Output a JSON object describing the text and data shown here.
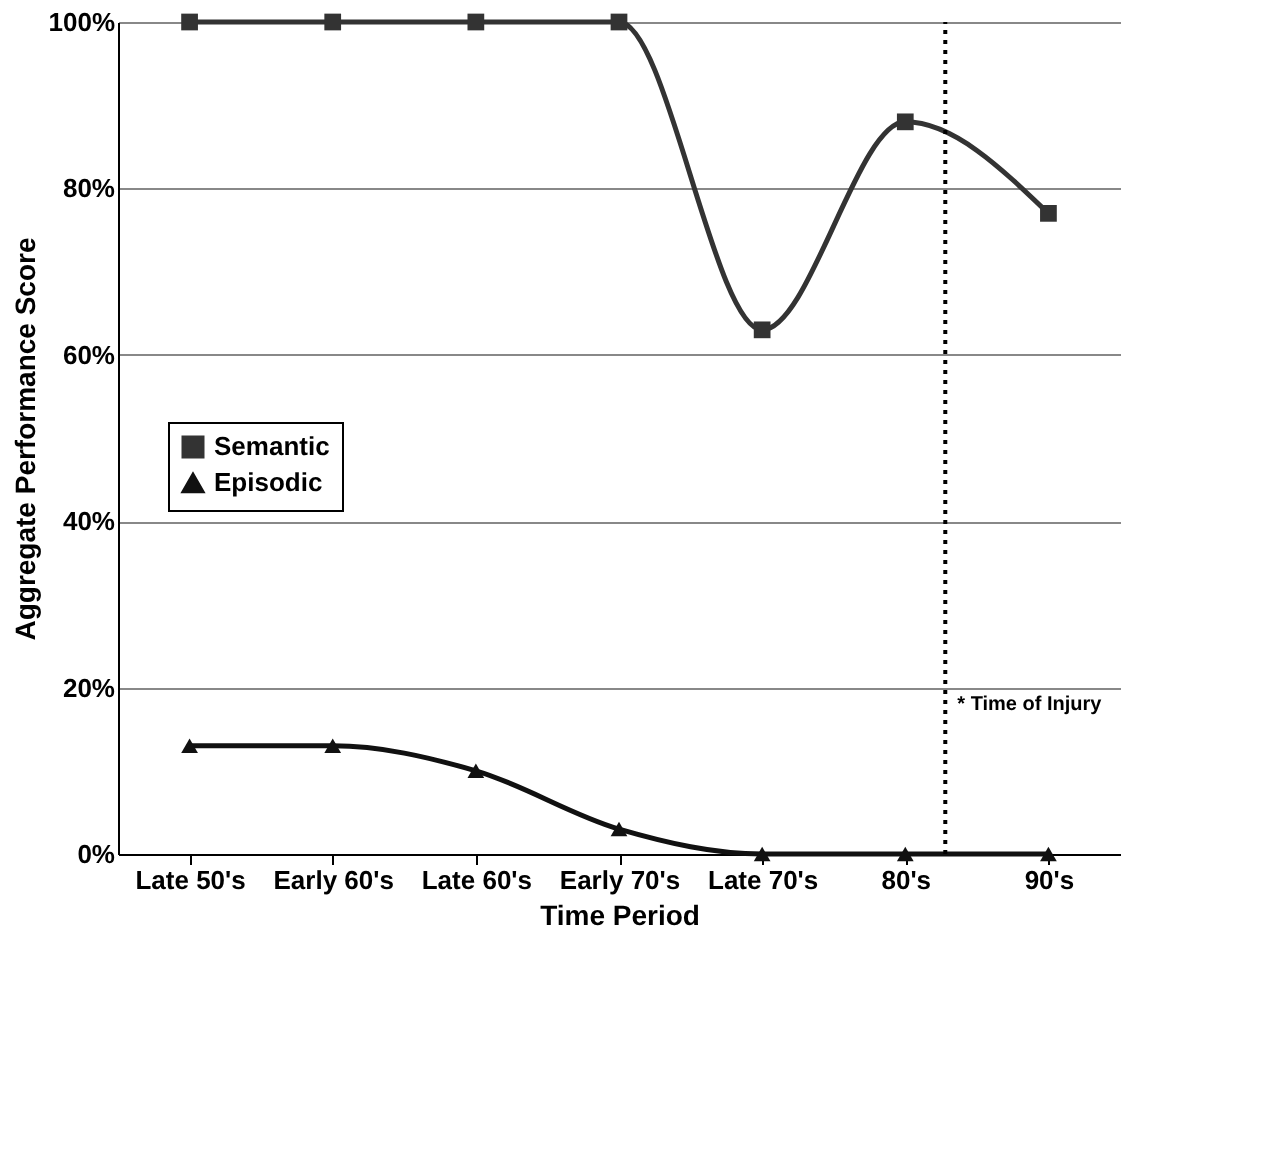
{
  "chart_data": {
    "type": "line",
    "xlabel": "Time Period",
    "ylabel": "Aggregate Performance Score",
    "categories": [
      "Late 50's",
      "Early 60's",
      "Late 60's",
      "Early 70's",
      "Late 70's",
      "80's",
      "90's"
    ],
    "series": [
      {
        "name": "Semantic",
        "color": "#333333",
        "marker": "square",
        "values": [
          100,
          100,
          100,
          100,
          63,
          88,
          77
        ]
      },
      {
        "name": "Episodic",
        "color": "#111111",
        "marker": "triangle",
        "values": [
          13,
          13,
          10,
          3,
          0,
          0,
          0
        ]
      }
    ],
    "ylim": [
      0,
      100
    ],
    "yticks": [
      {
        "value": 0,
        "label": "0%"
      },
      {
        "value": 20,
        "label": "20%"
      },
      {
        "value": 40,
        "label": "40%"
      },
      {
        "value": 60,
        "label": "60%"
      },
      {
        "value": 80,
        "label": "80%"
      },
      {
        "value": 100,
        "label": "100%"
      }
    ],
    "ref_lines": [
      {
        "axis": "x",
        "value": "80's",
        "label": "* Time of Injury",
        "line_style": "dotted"
      }
    ],
    "grid": "y",
    "legend": "left",
    "line_style": "solid"
  }
}
